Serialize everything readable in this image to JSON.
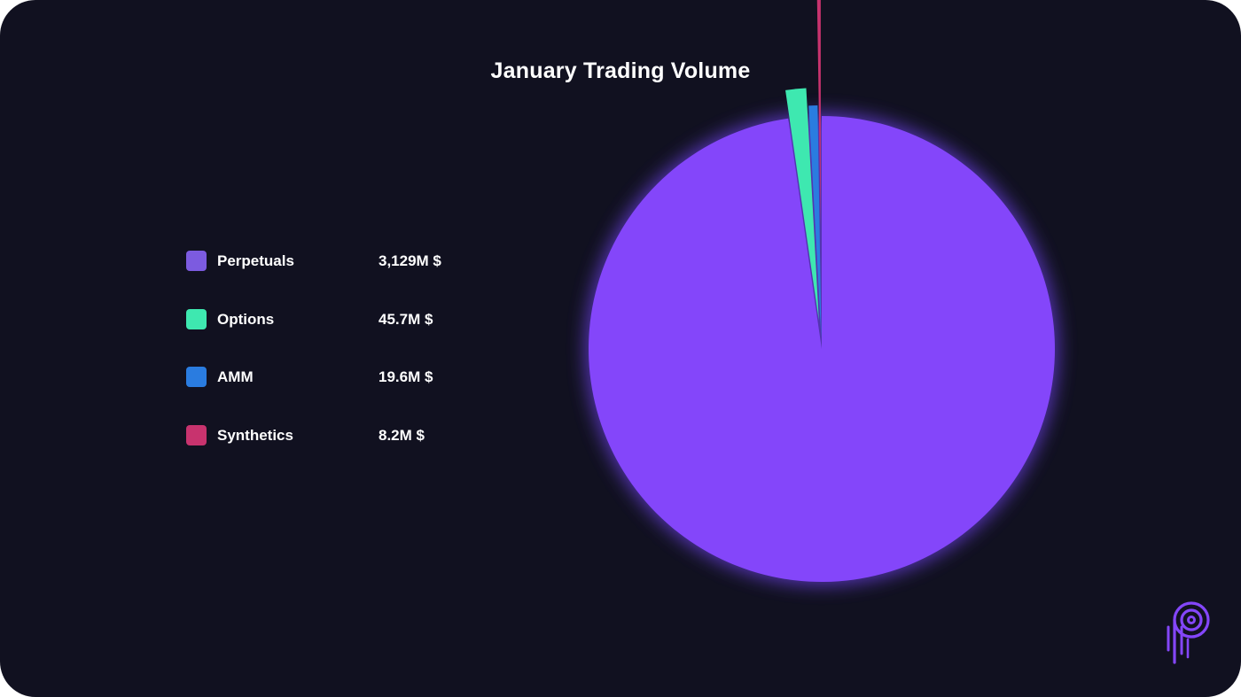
{
  "chart_data": {
    "type": "pie",
    "title": "January Trading Volume",
    "categories": [
      "Perpetuals",
      "Options",
      "AMM",
      "Synthetics"
    ],
    "values": [
      3129,
      45.7,
      19.6,
      8.2
    ],
    "value_labels": [
      "3,129M $",
      "45.7M $",
      "19.6M $",
      "8.2M $"
    ],
    "colors": [
      "#8446FA",
      "#3EE8B0",
      "#2A7CE0",
      "#C8336E"
    ],
    "legend_swatch_colors": [
      "#7C5BE0",
      "#3EE8B0",
      "#2A7CE0",
      "#C8336E"
    ],
    "legend_position": "left"
  }
}
